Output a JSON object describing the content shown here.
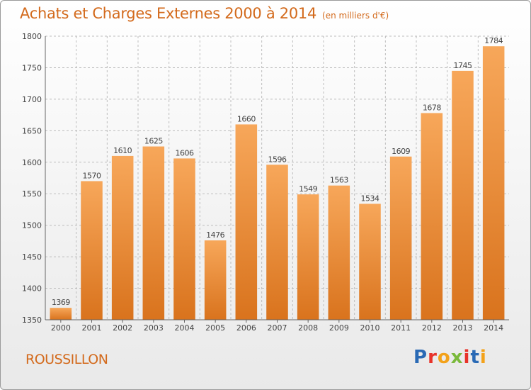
{
  "header": {
    "title": "Achats et Charges Externes 2000 à 2014",
    "unit": "(en milliers d'€)"
  },
  "footer": {
    "commune": "ROUSSILLON",
    "logo_text": "Proxiti"
  },
  "colors": {
    "bar_light": "#f7a75a",
    "bar_dark": "#d9731d",
    "title": "#d36a1c",
    "logo": [
      "#2a6ab5",
      "#e8332a",
      "#f3a21a",
      "#7ab93b",
      "#e8332a",
      "#2a6ab5",
      "#f3a21a"
    ]
  },
  "chart_data": {
    "type": "bar",
    "title": "Achats et Charges Externes 2000 à 2014",
    "subtitle": "(en milliers d'€)",
    "categories": [
      "2000",
      "2001",
      "2002",
      "2003",
      "2004",
      "2005",
      "2006",
      "2007",
      "2008",
      "2009",
      "2010",
      "2011",
      "2012",
      "2013",
      "2014"
    ],
    "values": [
      1369,
      1570,
      1610,
      1625,
      1606,
      1476,
      1660,
      1596,
      1549,
      1563,
      1534,
      1609,
      1678,
      1745,
      1784
    ],
    "ylim": [
      1350,
      1800
    ],
    "yticks": [
      1350,
      1400,
      1450,
      1500,
      1550,
      1600,
      1650,
      1700,
      1750,
      1800
    ],
    "grid": true,
    "xlabel": "",
    "ylabel": ""
  }
}
